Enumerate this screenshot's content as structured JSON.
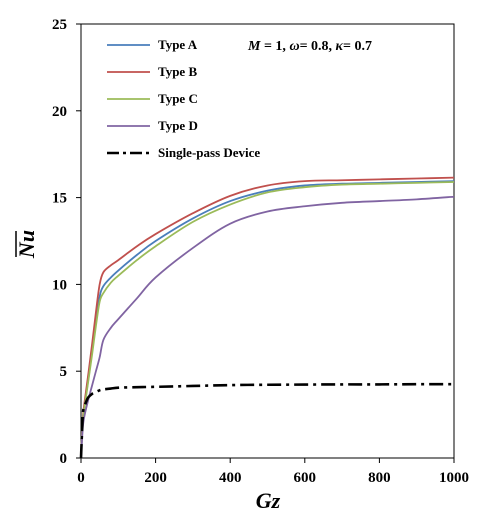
{
  "chart_data": {
    "type": "line",
    "title": "",
    "xlabel": "Gz",
    "ylabel": "Nu",
    "ylabel_overline": true,
    "xlim": [
      0,
      1000
    ],
    "ylim": [
      0,
      25
    ],
    "x_ticks": [
      0,
      200,
      400,
      600,
      800,
      1000
    ],
    "y_ticks": [
      0,
      5,
      10,
      15,
      20,
      25
    ],
    "grid": false,
    "legend_position": "top-left",
    "annotation": {
      "M_sym": "M",
      "M_val": " = 1, ",
      "omega_sym": "ω",
      "omega_val": "= 0.8, ",
      "kappa_sym": "κ",
      "kappa_val": "= 0.7"
    },
    "series": [
      {
        "name": "Type A",
        "color": "#4a7ebb",
        "dash": "solid",
        "x": [
          0,
          5,
          10,
          20,
          30,
          40,
          50,
          60,
          80,
          100,
          150,
          200,
          300,
          400,
          500,
          600,
          700,
          800,
          900,
          1000
        ],
        "y": [
          0,
          2.2,
          3.1,
          4.6,
          6.2,
          7.8,
          9.3,
          9.9,
          10.4,
          10.8,
          11.7,
          12.5,
          13.8,
          14.8,
          15.4,
          15.7,
          15.8,
          15.85,
          15.9,
          15.95
        ]
      },
      {
        "name": "Type B",
        "color": "#c0504d",
        "dash": "solid",
        "x": [
          0,
          5,
          10,
          20,
          30,
          40,
          50,
          60,
          80,
          100,
          150,
          200,
          300,
          400,
          500,
          600,
          700,
          800,
          900,
          1000
        ],
        "y": [
          0,
          2.3,
          3.3,
          4.9,
          6.6,
          8.4,
          10.0,
          10.7,
          11.1,
          11.4,
          12.2,
          12.9,
          14.1,
          15.1,
          15.7,
          15.95,
          16.0,
          16.05,
          16.1,
          16.15
        ]
      },
      {
        "name": "Type C",
        "color": "#9bbb59",
        "dash": "solid",
        "x": [
          0,
          5,
          10,
          20,
          30,
          40,
          50,
          60,
          80,
          100,
          150,
          200,
          300,
          400,
          500,
          600,
          700,
          800,
          900,
          1000
        ],
        "y": [
          0,
          2.1,
          3.0,
          4.5,
          6.0,
          7.6,
          9.0,
          9.5,
          10.1,
          10.5,
          11.4,
          12.2,
          13.6,
          14.6,
          15.3,
          15.6,
          15.75,
          15.8,
          15.85,
          15.9
        ]
      },
      {
        "name": "Type D",
        "color": "#8064a2",
        "dash": "solid",
        "x": [
          0,
          5,
          10,
          20,
          30,
          40,
          50,
          60,
          80,
          100,
          150,
          200,
          300,
          400,
          500,
          600,
          700,
          800,
          900,
          1000
        ],
        "y": [
          0,
          1.8,
          2.5,
          3.4,
          4.2,
          5.0,
          5.8,
          6.8,
          7.5,
          8.0,
          9.2,
          10.4,
          12.1,
          13.5,
          14.2,
          14.5,
          14.7,
          14.8,
          14.9,
          15.05
        ]
      },
      {
        "name": "Single-pass Device",
        "color": "#000000",
        "dash": "dashdot",
        "x": [
          0,
          5,
          10,
          15,
          20,
          30,
          40,
          50,
          60,
          80,
          100,
          150,
          200,
          300,
          400,
          500,
          600,
          700,
          800,
          900,
          1000
        ],
        "y": [
          0,
          2.5,
          3.0,
          3.3,
          3.5,
          3.7,
          3.8,
          3.9,
          3.95,
          4.0,
          4.05,
          4.08,
          4.1,
          4.15,
          4.2,
          4.22,
          4.23,
          4.24,
          4.24,
          4.25,
          4.25
        ]
      }
    ]
  }
}
